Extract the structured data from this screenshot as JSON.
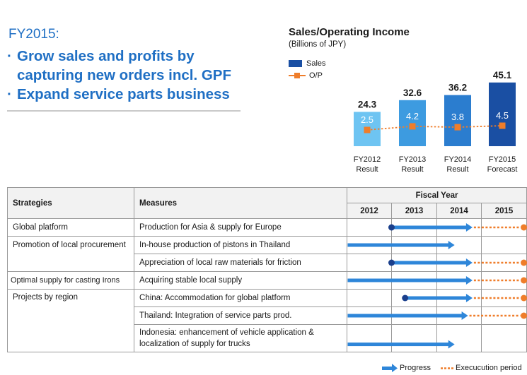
{
  "left_panel": {
    "heading": "FY2015:",
    "bullets": [
      {
        "marker": "·",
        "lines": [
          "Grow sales and profits by",
          "capturing new orders incl. GPF"
        ]
      },
      {
        "marker": "·",
        "lines": [
          "Expand service parts business"
        ]
      }
    ]
  },
  "chart_data": {
    "type": "bar",
    "title": "Sales/Operating Income",
    "subtitle": "(Billions of JPY)",
    "categories": [
      [
        "FY2012",
        "Result"
      ],
      [
        "FY2013",
        "Result"
      ],
      [
        "FY2014",
        "Result"
      ],
      [
        "FY2015",
        "Forecast"
      ]
    ],
    "series": [
      {
        "name": "Sales",
        "type": "bar",
        "values": [
          24.3,
          32.6,
          36.2,
          45.1
        ],
        "colors": [
          "#6ec4f2",
          "#3d9be0",
          "#2b7dcf",
          "#1a4fa3"
        ]
      },
      {
        "name": "O/P",
        "type": "line",
        "values": [
          2.5,
          4.2,
          3.8,
          4.5
        ],
        "color": "#ef7d2a"
      }
    ],
    "ylim": [
      0,
      47
    ],
    "legend_position": "top-left"
  },
  "table": {
    "headers": {
      "strategies": "Strategies",
      "measures": "Measures",
      "fiscal_year": "Fiscal Year",
      "years": [
        "2012",
        "2013",
        "2014",
        "2015"
      ]
    },
    "rows": [
      {
        "strategy": "Global platform",
        "measure": "Production for Asia & supply for Europe",
        "progress_start_dot": true,
        "progress_start": 2013.0,
        "progress_end": 2014.8,
        "exec_end_dot": true
      },
      {
        "strategy": "Promotion of local procurement",
        "measure": "In-house production of pistons in Thailand",
        "progress_start_dot": false,
        "progress_start": 2012.0,
        "progress_end": 2014.4,
        "exec_end_dot": false
      },
      {
        "strategy": "",
        "measure": "Appreciation of local raw materials for friction",
        "progress_start_dot": true,
        "progress_start": 2013.0,
        "progress_end": 2014.8,
        "exec_end_dot": true
      },
      {
        "strategy": "Optimal supply for casting Irons",
        "measure": "Acquiring stable local supply",
        "progress_start_dot": false,
        "progress_start": 2012.0,
        "progress_end": 2014.8,
        "exec_end_dot": true
      },
      {
        "strategy": "Projects by region",
        "measure": "China: Accommodation for global platform",
        "progress_start_dot": true,
        "progress_start": 2013.3,
        "progress_end": 2014.8,
        "exec_end_dot": true
      },
      {
        "strategy": "",
        "measure": "Thailand: Integration of service parts prod.",
        "progress_start_dot": false,
        "progress_start": 2012.0,
        "progress_end": 2014.7,
        "exec_end_dot": true
      },
      {
        "strategy": "",
        "measure": "Indonesia: enhancement of vehicle application & localization of supply for trucks",
        "progress_start_dot": false,
        "progress_start": 2012.0,
        "progress_end": 2014.4,
        "exec_end_dot": false
      }
    ]
  },
  "legend": {
    "progress": "Progress",
    "execution": "Execucution period",
    "progress_color": "#2e86d9",
    "execution_color": "#ef7d2a"
  }
}
